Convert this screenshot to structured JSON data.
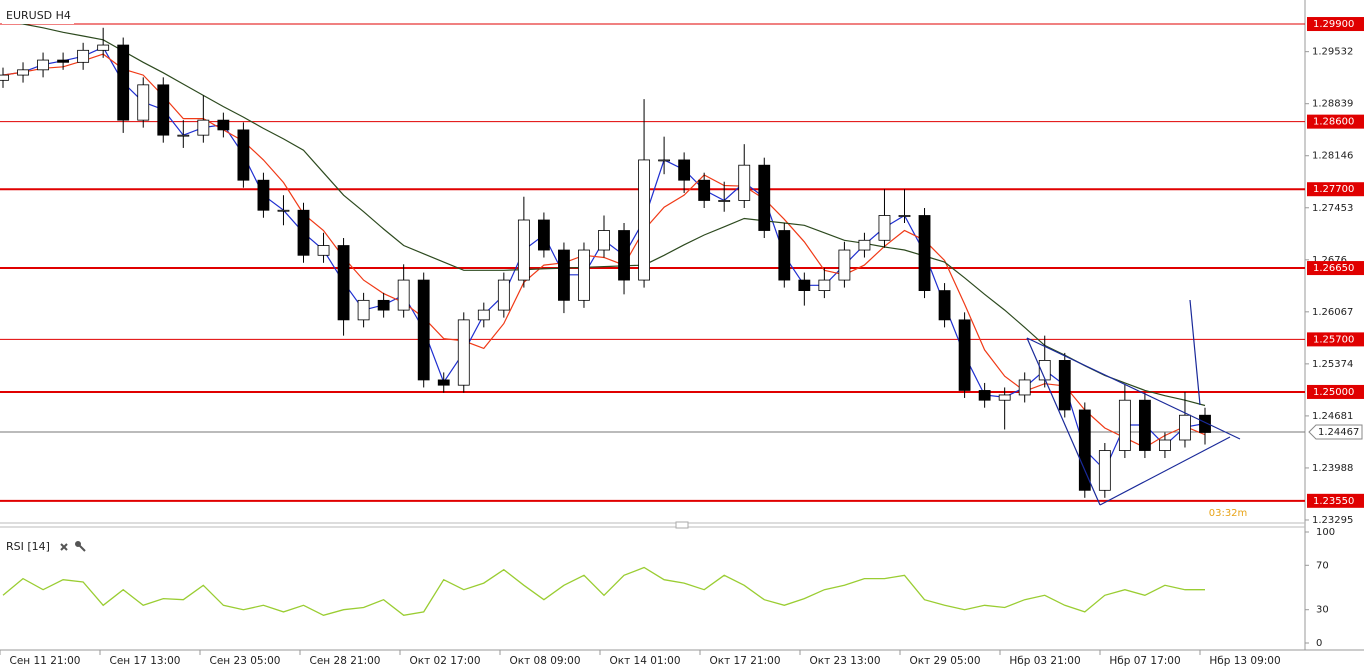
{
  "chart_data": {
    "type": "candlestick",
    "title": "EURUSD H4",
    "ylim": [
      1.23268,
      1.3022
    ],
    "yticks": [
      1.29532,
      1.28839,
      1.28146,
      1.27453,
      1.2676,
      1.26067,
      1.25374,
      1.24681,
      1.23988,
      1.23295
    ],
    "xlabels": [
      "Сен 11 21:00",
      "Сен 17 13:00",
      "Сен 23 05:00",
      "Сен 28 21:00",
      "Окт 02 17:00",
      "Окт 08 09:00",
      "Окт 14 01:00",
      "Окт 17 21:00",
      "Окт 23 13:00",
      "Окт 29 05:00",
      "Нбр 03 21:00",
      "Нбр 07 17:00",
      "Нбр 13 09:00"
    ],
    "candles": [
      [
        1.2915,
        1.2932,
        1.2905,
        1.2922
      ],
      [
        1.2922,
        1.2939,
        1.2912,
        1.2929
      ],
      [
        1.2929,
        1.2952,
        1.2919,
        1.2942
      ],
      [
        1.2942,
        1.2952,
        1.2929,
        1.2939
      ],
      [
        1.2939,
        1.2965,
        1.2929,
        1.2955
      ],
      [
        1.2955,
        1.2985,
        1.2945,
        1.2962
      ],
      [
        1.2962,
        1.2972,
        1.2845,
        1.2862
      ],
      [
        1.2862,
        1.2919,
        1.2852,
        1.2909
      ],
      [
        1.2909,
        1.2919,
        1.2832,
        1.2842
      ],
      [
        1.2842,
        1.2862,
        1.2825,
        1.2842
      ],
      [
        1.2842,
        1.2895,
        1.2832,
        1.2862
      ],
      [
        1.2862,
        1.2872,
        1.2839,
        1.2849
      ],
      [
        1.2849,
        1.2859,
        1.2772,
        1.2782
      ],
      [
        1.2782,
        1.2792,
        1.2732,
        1.2742
      ],
      [
        1.2742,
        1.2762,
        1.2722,
        1.2742
      ],
      [
        1.2742,
        1.2752,
        1.2672,
        1.2682
      ],
      [
        1.2682,
        1.2712,
        1.2672,
        1.2695
      ],
      [
        1.2695,
        1.2705,
        1.2575,
        1.2596
      ],
      [
        1.2596,
        1.2632,
        1.2586,
        1.2622
      ],
      [
        1.2622,
        1.2632,
        1.2599,
        1.2609
      ],
      [
        1.2609,
        1.267,
        1.2599,
        1.2649
      ],
      [
        1.2649,
        1.2659,
        1.2506,
        1.2516
      ],
      [
        1.2516,
        1.2526,
        1.2499,
        1.2509
      ],
      [
        1.2509,
        1.2606,
        1.2499,
        1.2596
      ],
      [
        1.2596,
        1.2619,
        1.2586,
        1.2609
      ],
      [
        1.2609,
        1.2659,
        1.2599,
        1.2649
      ],
      [
        1.2649,
        1.276,
        1.2639,
        1.2729
      ],
      [
        1.2729,
        1.2739,
        1.2679,
        1.2689
      ],
      [
        1.2689,
        1.2699,
        1.2605,
        1.2622
      ],
      [
        1.2622,
        1.2699,
        1.2612,
        1.2689
      ],
      [
        1.2689,
        1.2735,
        1.2679,
        1.2715
      ],
      [
        1.2715,
        1.2725,
        1.263,
        1.2649
      ],
      [
        1.2649,
        1.289,
        1.2639,
        1.2809
      ],
      [
        1.2809,
        1.284,
        1.279,
        1.2809
      ],
      [
        1.2809,
        1.2819,
        1.2765,
        1.2782
      ],
      [
        1.2782,
        1.2792,
        1.2745,
        1.2755
      ],
      [
        1.2755,
        1.278,
        1.274,
        1.2755
      ],
      [
        1.2755,
        1.283,
        1.2745,
        1.2802
      ],
      [
        1.2802,
        1.2812,
        1.2705,
        1.2715
      ],
      [
        1.2715,
        1.2725,
        1.2639,
        1.2649
      ],
      [
        1.2649,
        1.2659,
        1.2615,
        1.2635
      ],
      [
        1.2635,
        1.2665,
        1.2625,
        1.2649
      ],
      [
        1.2649,
        1.27,
        1.2639,
        1.2689
      ],
      [
        1.2689,
        1.2712,
        1.2679,
        1.2702
      ],
      [
        1.2702,
        1.277,
        1.2692,
        1.2735
      ],
      [
        1.2735,
        1.277,
        1.2725,
        1.2735
      ],
      [
        1.2735,
        1.2745,
        1.2625,
        1.2635
      ],
      [
        1.2635,
        1.2645,
        1.2586,
        1.2596
      ],
      [
        1.2596,
        1.2606,
        1.2492,
        1.2502
      ],
      [
        1.2502,
        1.2512,
        1.2479,
        1.2489
      ],
      [
        1.2489,
        1.2506,
        1.245,
        1.2496
      ],
      [
        1.2496,
        1.2526,
        1.2486,
        1.2516
      ],
      [
        1.2516,
        1.2575,
        1.2506,
        1.2542
      ],
      [
        1.2542,
        1.2552,
        1.2466,
        1.2476
      ],
      [
        1.2476,
        1.2486,
        1.2359,
        1.2369
      ],
      [
        1.2369,
        1.2432,
        1.2359,
        1.2422
      ],
      [
        1.2422,
        1.251,
        1.2412,
        1.2489
      ],
      [
        1.2489,
        1.2499,
        1.2412,
        1.2422
      ],
      [
        1.2422,
        1.2446,
        1.2412,
        1.2436
      ],
      [
        1.2436,
        1.25,
        1.2426,
        1.2469
      ],
      [
        1.2469,
        1.2479,
        1.243,
        1.2446
      ]
    ],
    "up_color": "#ffffff",
    "down_color": "#000000",
    "series": [
      {
        "color": "#1f2fd0",
        "values": [
          1.2922,
          1.2926,
          1.2936,
          1.2941,
          1.2947,
          1.2959,
          1.2912,
          1.2886,
          1.2876,
          1.2842,
          1.2852,
          1.2856,
          1.2816,
          1.2762,
          1.2742,
          1.2712,
          1.2689,
          1.2646,
          1.2609,
          1.2616,
          1.2629,
          1.2583,
          1.2513,
          1.2553,
          1.2603,
          1.2629,
          1.2689,
          1.2709,
          1.2656,
          1.2656,
          1.2702,
          1.2682,
          1.2729,
          1.2809,
          1.2796,
          1.2769,
          1.2755,
          1.2779,
          1.2759,
          1.2682,
          1.2642,
          1.2642,
          1.2669,
          1.2696,
          1.2719,
          1.2735,
          1.2685,
          1.2616,
          1.2549,
          1.2496,
          1.2493,
          1.2506,
          1.2529,
          1.2509,
          1.2423,
          1.2396,
          1.2456,
          1.2456,
          1.2429,
          1.2453,
          1.2458
        ]
      },
      {
        "color": "#f03a17",
        "values": [
          1.2922,
          1.2926,
          1.2931,
          1.2933,
          1.2941,
          1.295,
          1.293,
          1.2922,
          1.2894,
          1.2864,
          1.2864,
          1.2849,
          1.2834,
          1.2809,
          1.2779,
          1.2737,
          1.2715,
          1.2679,
          1.2649,
          1.2631,
          1.2619,
          1.2599,
          1.2571,
          1.2568,
          1.2558,
          1.2591,
          1.2646,
          1.2669,
          1.2672,
          1.2682,
          1.2679,
          1.2669,
          1.2716,
          1.2746,
          1.2762,
          1.2789,
          1.2775,
          1.2774,
          1.2757,
          1.273,
          1.27,
          1.2662,
          1.2656,
          1.2669,
          1.2694,
          1.2715,
          1.2702,
          1.2675,
          1.2617,
          1.2556,
          1.2521,
          1.2501,
          1.2511,
          1.2508,
          1.2476,
          1.2452,
          1.2439,
          1.2426,
          1.2442,
          1.2454,
          1.2443
        ]
      },
      {
        "color": "#2d4a1f",
        "values": [
          1.2995,
          1.299,
          1.2985,
          1.2979,
          1.2974,
          1.2969,
          1.2954,
          1.2939,
          1.2925,
          1.291,
          1.2895,
          1.288,
          1.2866,
          1.2851,
          1.2837,
          1.2822,
          1.2792,
          1.2762,
          1.274,
          1.2717,
          1.2695,
          1.2684,
          1.2673,
          1.2662,
          1.2662,
          1.2662,
          1.2663,
          1.2664,
          1.2665,
          1.2666,
          1.2667,
          1.2668,
          1.2669,
          1.2682,
          1.2696,
          1.2709,
          1.272,
          1.2731,
          1.2728,
          1.2725,
          1.2722,
          1.2712,
          1.2702,
          1.2698,
          1.2693,
          1.2689,
          1.2681,
          1.2673,
          1.2652,
          1.263,
          1.2609,
          1.2586,
          1.2562,
          1.2549,
          1.2535,
          1.2522,
          1.2512,
          1.2502,
          1.2495,
          1.2489,
          1.2482
        ]
      }
    ],
    "levels": [
      {
        "value": 1.299,
        "label": "1.29900",
        "thick": false
      },
      {
        "value": 1.286,
        "label": "1.28600",
        "thick": false
      },
      {
        "value": 1.277,
        "label": "1.27700",
        "thick": true
      },
      {
        "value": 1.2665,
        "label": "1.26650",
        "thick": true
      },
      {
        "value": 1.257,
        "label": "1.25700",
        "thick": false
      },
      {
        "value": 1.25,
        "label": "1.25000",
        "thick": true
      },
      {
        "value": 1.2355,
        "label": "1.23550",
        "thick": true
      }
    ],
    "level_color": "#e00000",
    "current_price": 1.24467,
    "countdown": "03:32m",
    "rsi": {
      "title": "RSI [14]",
      "color": "#9acd32",
      "ylim": [
        0,
        100
      ],
      "yticks": [
        0,
        30,
        70,
        100
      ],
      "values": [
        43,
        58,
        48,
        57,
        55,
        34,
        48,
        34,
        40,
        39,
        52,
        34,
        30,
        34,
        28,
        34,
        25,
        30,
        32,
        39,
        25,
        28,
        57,
        48,
        54,
        66,
        52,
        39,
        52,
        61,
        43,
        61,
        68,
        57,
        54,
        48,
        61,
        52,
        39,
        34,
        40,
        48,
        52,
        58,
        58,
        61,
        39,
        34,
        30,
        34,
        32,
        39,
        43,
        34,
        28,
        43,
        48,
        43,
        52,
        48,
        48
      ]
    }
  }
}
